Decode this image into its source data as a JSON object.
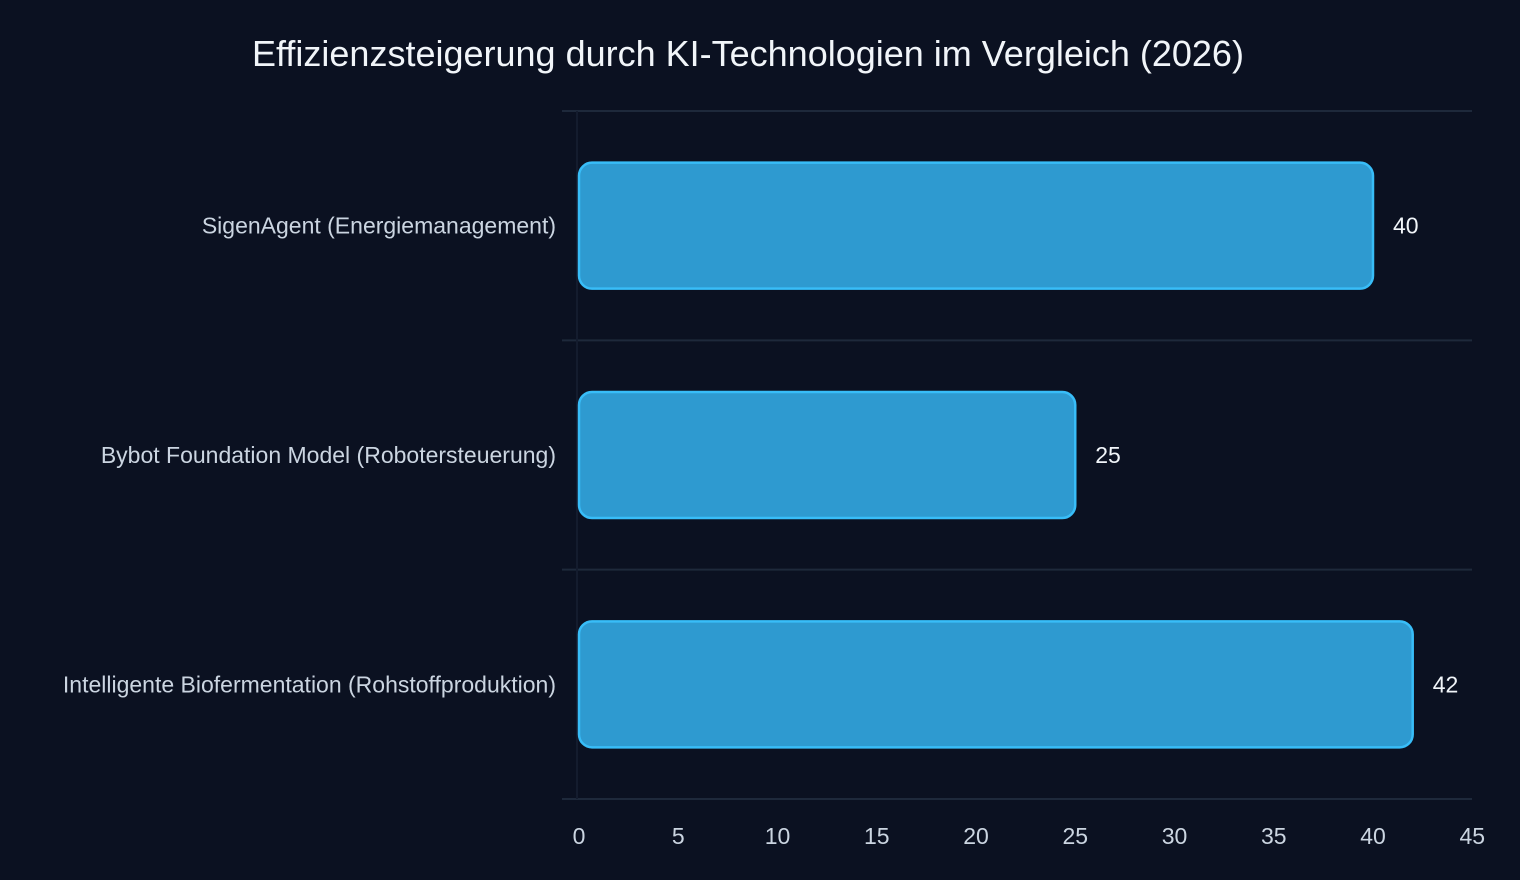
{
  "chart_data": {
    "type": "bar",
    "orientation": "horizontal",
    "title": "Effizienzsteigerung durch KI-Technologien im Vergleich (2026)",
    "categories": [
      "SigenAgent (Energiemanagement)",
      "Bybot Foundation Model (Robotersteuerung)",
      "Intelligente Biofermentation (Rohstoffproduktion)"
    ],
    "values": [
      40,
      25,
      42
    ],
    "value_labels": [
      "40",
      "25",
      "42"
    ],
    "xlim": [
      0,
      45
    ],
    "x_ticks": [
      0,
      5,
      10,
      15,
      20,
      25,
      30,
      35,
      40,
      45
    ],
    "x_tick_labels": [
      "0",
      "5",
      "10",
      "15",
      "20",
      "25",
      "30",
      "35",
      "40",
      "45"
    ],
    "xlabel": "",
    "ylabel": "",
    "grid": true,
    "legend": false,
    "colors": {
      "background": "#0b1121",
      "bar_fill": "#2e9ad0",
      "bar_stroke": "#38bdf8",
      "grid": "#1e293b",
      "text": "#cbd5e1",
      "title": "#f1f5f9"
    }
  }
}
